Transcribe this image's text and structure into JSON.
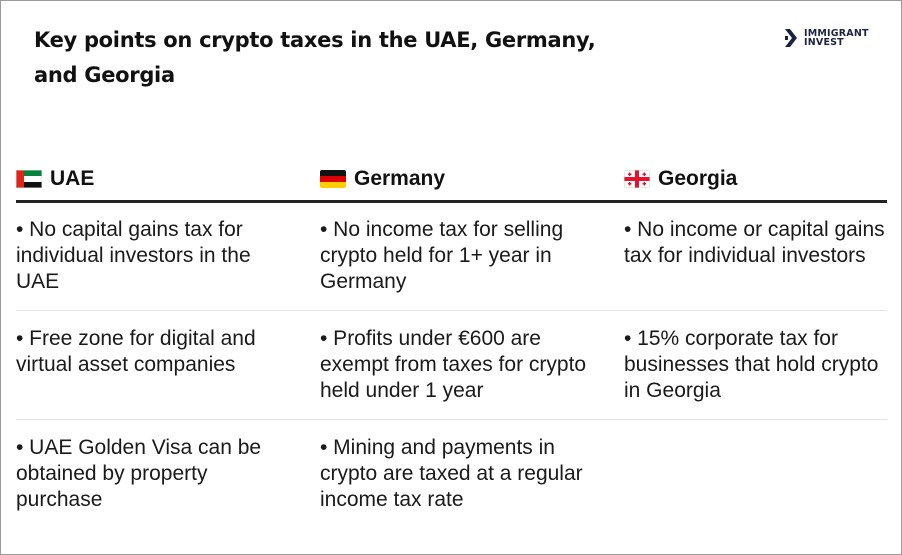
{
  "title": "Key points on crypto taxes in the UAE, Germany, and Georgia",
  "logo": {
    "line1": "IMMIGRANT",
    "line2": "INVEST",
    "icon": "chevron-logo-icon"
  },
  "columns": [
    {
      "name": "UAE",
      "flag": "uae-flag-icon"
    },
    {
      "name": "Germany",
      "flag": "germany-flag-icon"
    },
    {
      "name": "Georgia",
      "flag": "georgia-flag-icon"
    }
  ],
  "rows": [
    [
      "• No capital gains tax for individual investors in the UAE",
      "• No income tax for selling crypto held for 1+ year in Germany",
      "• No income or capital gains tax for individual investors"
    ],
    [
      "• Free zone for digital and virtual asset companies",
      "• Profits under €600 are exempt from taxes for crypto held under 1 year",
      "• 15% corporate tax for businesses that hold crypto in Georgia"
    ],
    [
      "• UAE Golden Visa can be obtained by property purchase",
      "• Mining and payments in crypto are taxed at a regular income tax rate",
      ""
    ]
  ],
  "colors": {
    "text": "#1a1a1a",
    "logo": "#1b2340",
    "divider": "#222222",
    "row_line": "#e2e2e2"
  }
}
